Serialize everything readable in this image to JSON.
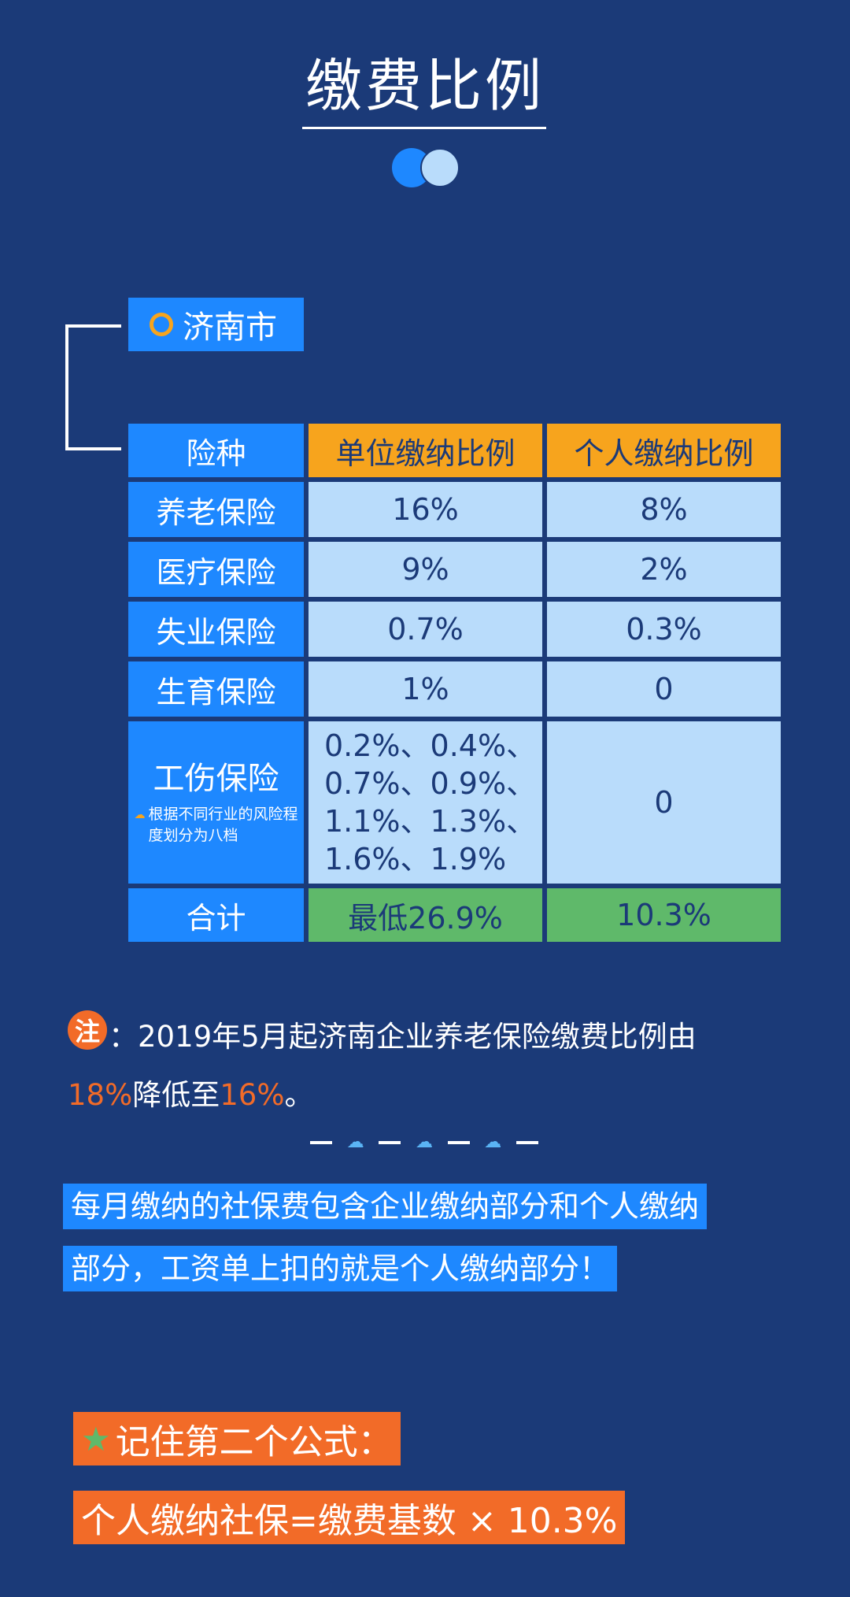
{
  "title": "缴费比例",
  "city": "济南市",
  "table": {
    "headers": [
      "险种",
      "单位缴纳比例",
      "个人缴纳比例"
    ],
    "rows": [
      {
        "name": "养老保险",
        "unit": "16%",
        "personal": "8%"
      },
      {
        "name": "医疗保险",
        "unit": "9%",
        "personal": "2%"
      },
      {
        "name": "失业保险",
        "unit": "0.7%",
        "personal": "0.3%"
      },
      {
        "name": "生育保险",
        "unit": "1%",
        "personal": "0"
      }
    ],
    "injury": {
      "name": "工伤保险",
      "note": "根据不同行业的风险程度划分为八档",
      "unit_lines": [
        "0.2%、0.4%、",
        "0.7%、0.9%、",
        "1.1%、1.3%、",
        "1.6%、1.9%"
      ],
      "personal": "0"
    },
    "total": {
      "name": "合计",
      "unit": "最低26.9%",
      "personal": "10.3%"
    }
  },
  "note": {
    "badge": "注",
    "text_part1": "：2019年5月起济南企业养老保险缴费比例由",
    "old_rate": "18%",
    "text_part2": "降低至",
    "new_rate": "16%",
    "text_part3": "。"
  },
  "highlight": {
    "line1": "每月缴纳的社保费包含企业缴纳部分和个人缴纳",
    "line2": "部分，工资单上扣的就是个人缴纳部分！"
  },
  "formula": {
    "heading": "记住第二个公式：",
    "body": "个人缴纳社保=缴费基数 × 10.3%"
  },
  "colors": {
    "background": "#1b3a78",
    "accent_blue": "#1e88ff",
    "light_blue": "#b9dcfb",
    "orange": "#f7a41d",
    "red_orange": "#f26b28",
    "green": "#5fb96a"
  },
  "icons": [
    "ring-icon",
    "cloud-icon",
    "star-icon"
  ]
}
